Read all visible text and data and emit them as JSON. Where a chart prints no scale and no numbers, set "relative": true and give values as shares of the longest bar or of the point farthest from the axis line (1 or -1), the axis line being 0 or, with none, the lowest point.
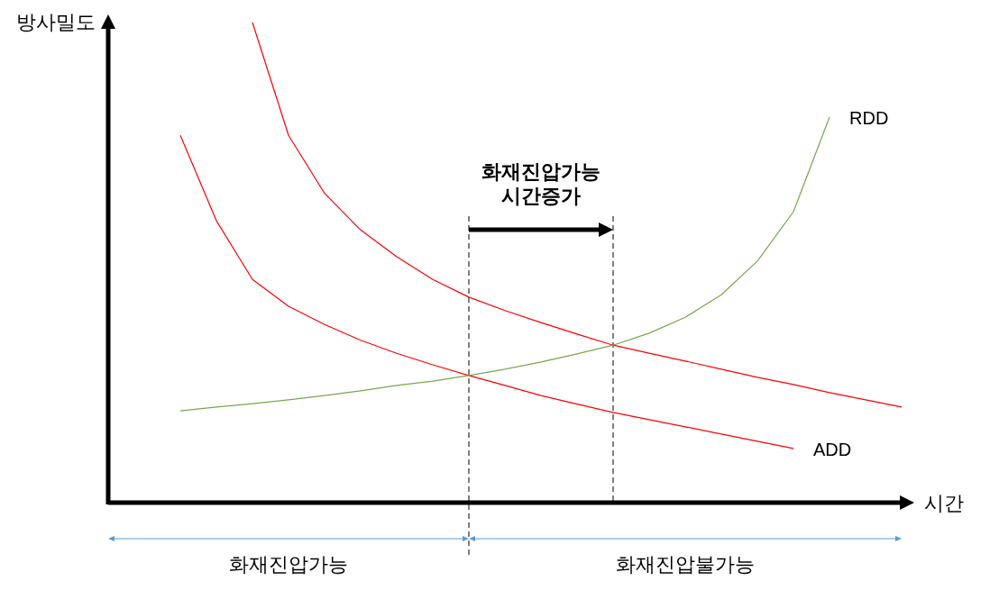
{
  "chart_data": {
    "type": "line",
    "relative": true,
    "xlabel": "시간",
    "ylabel": "방사밀도",
    "categories": [
      null,
      null,
      null,
      null,
      null,
      null,
      null,
      null,
      null,
      null,
      null,
      null,
      null,
      null,
      null,
      null,
      null,
      null,
      null,
      null,
      null,
      null,
      null
    ],
    "series": [
      {
        "name": "ADD",
        "color": "#ff0000",
        "values": [
          null,
          null,
          0.765,
          0.587,
          0.465,
          0.409,
          0.371,
          0.338,
          0.311,
          0.287,
          0.265,
          0.244,
          0.223,
          0.205,
          0.188,
          0.173,
          0.158,
          0.143,
          0.128,
          0.113,
          null,
          null,
          null
        ]
      },
      {
        "color": "#ff0000",
        "values": [
          null,
          null,
          null,
          null,
          1,
          0.765,
          0.644,
          0.568,
          0.512,
          0.465,
          0.428,
          0.4,
          0.375,
          0.351,
          0.328,
          0.311,
          0.295,
          0.278,
          0.261,
          0.246,
          0.229,
          0.214,
          0.199
        ]
      },
      {
        "name": "RDD",
        "color": "#77a84b",
        "values": [
          null,
          null,
          0.191,
          0.199,
          0.206,
          0.214,
          0.223,
          0.233,
          0.244,
          0.253,
          0.265,
          0.278,
          0.293,
          0.31,
          0.328,
          0.353,
          0.386,
          0.433,
          0.503,
          0.606,
          0.803,
          null,
          null
        ]
      }
    ],
    "annotations": [
      "화재진압가능\n시간증가",
      "화재진압가능",
      "화재진압불가능"
    ],
    "legend": false
  }
}
